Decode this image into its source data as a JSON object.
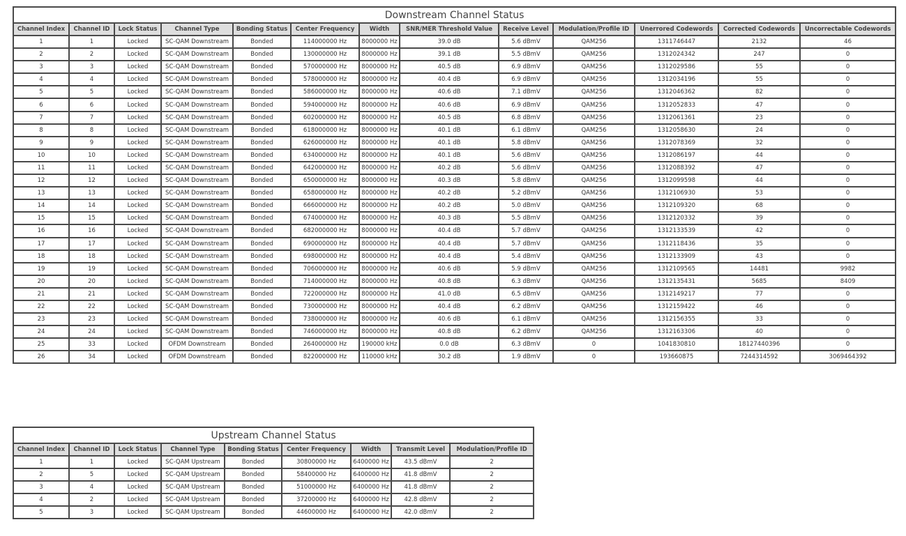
{
  "downstream": {
    "title": "Downstream Channel Status",
    "headers": [
      "Channel Index",
      "Channel ID",
      "Lock Status",
      "Channel Type",
      "Bonding Status",
      "Center Frequency",
      "Width",
      "SNR/MER Threshold Value",
      "Receive Level",
      "Modulation/Profile ID",
      "Unerrored Codewords",
      "Corrected Codewords",
      "Uncorrectable Codewords"
    ],
    "rows": [
      [
        "1",
        "1",
        "Locked",
        "SC-QAM Downstream",
        "Bonded",
        "114000000 Hz",
        "8000000 Hz",
        "39.0 dB",
        "5.6 dBmV",
        "QAM256",
        "1311746447",
        "2132",
        "46"
      ],
      [
        "2",
        "2",
        "Locked",
        "SC-QAM Downstream",
        "Bonded",
        "130000000 Hz",
        "8000000 Hz",
        "39.1 dB",
        "5.5 dBmV",
        "QAM256",
        "1312024342",
        "247",
        "0"
      ],
      [
        "3",
        "3",
        "Locked",
        "SC-QAM Downstream",
        "Bonded",
        "570000000 Hz",
        "8000000 Hz",
        "40.5 dB",
        "6.9 dBmV",
        "QAM256",
        "1312029586",
        "55",
        "0"
      ],
      [
        "4",
        "4",
        "Locked",
        "SC-QAM Downstream",
        "Bonded",
        "578000000 Hz",
        "8000000 Hz",
        "40.4 dB",
        "6.9 dBmV",
        "QAM256",
        "1312034196",
        "55",
        "0"
      ],
      [
        "5",
        "5",
        "Locked",
        "SC-QAM Downstream",
        "Bonded",
        "586000000 Hz",
        "8000000 Hz",
        "40.6 dB",
        "7.1 dBmV",
        "QAM256",
        "1312046362",
        "82",
        "0"
      ],
      [
        "6",
        "6",
        "Locked",
        "SC-QAM Downstream",
        "Bonded",
        "594000000 Hz",
        "8000000 Hz",
        "40.6 dB",
        "6.9 dBmV",
        "QAM256",
        "1312052833",
        "47",
        "0"
      ],
      [
        "7",
        "7",
        "Locked",
        "SC-QAM Downstream",
        "Bonded",
        "602000000 Hz",
        "8000000 Hz",
        "40.5 dB",
        "6.8 dBmV",
        "QAM256",
        "1312061361",
        "23",
        "0"
      ],
      [
        "8",
        "8",
        "Locked",
        "SC-QAM Downstream",
        "Bonded",
        "618000000 Hz",
        "8000000 Hz",
        "40.1 dB",
        "6.1 dBmV",
        "QAM256",
        "1312058630",
        "24",
        "0"
      ],
      [
        "9",
        "9",
        "Locked",
        "SC-QAM Downstream",
        "Bonded",
        "626000000 Hz",
        "8000000 Hz",
        "40.1 dB",
        "5.8 dBmV",
        "QAM256",
        "1312078369",
        "32",
        "0"
      ],
      [
        "10",
        "10",
        "Locked",
        "SC-QAM Downstream",
        "Bonded",
        "634000000 Hz",
        "8000000 Hz",
        "40.1 dB",
        "5.6 dBmV",
        "QAM256",
        "1312086197",
        "44",
        "0"
      ],
      [
        "11",
        "11",
        "Locked",
        "SC-QAM Downstream",
        "Bonded",
        "642000000 Hz",
        "8000000 Hz",
        "40.2 dB",
        "5.6 dBmV",
        "QAM256",
        "1312088392",
        "47",
        "0"
      ],
      [
        "12",
        "12",
        "Locked",
        "SC-QAM Downstream",
        "Bonded",
        "650000000 Hz",
        "8000000 Hz",
        "40.3 dB",
        "5.8 dBmV",
        "QAM256",
        "1312099598",
        "44",
        "0"
      ],
      [
        "13",
        "13",
        "Locked",
        "SC-QAM Downstream",
        "Bonded",
        "658000000 Hz",
        "8000000 Hz",
        "40.2 dB",
        "5.2 dBmV",
        "QAM256",
        "1312106930",
        "53",
        "0"
      ],
      [
        "14",
        "14",
        "Locked",
        "SC-QAM Downstream",
        "Bonded",
        "666000000 Hz",
        "8000000 Hz",
        "40.2 dB",
        "5.0 dBmV",
        "QAM256",
        "1312109320",
        "68",
        "0"
      ],
      [
        "15",
        "15",
        "Locked",
        "SC-QAM Downstream",
        "Bonded",
        "674000000 Hz",
        "8000000 Hz",
        "40.3 dB",
        "5.5 dBmV",
        "QAM256",
        "1312120332",
        "39",
        "0"
      ],
      [
        "16",
        "16",
        "Locked",
        "SC-QAM Downstream",
        "Bonded",
        "682000000 Hz",
        "8000000 Hz",
        "40.4 dB",
        "5.7 dBmV",
        "QAM256",
        "1312133539",
        "42",
        "0"
      ],
      [
        "17",
        "17",
        "Locked",
        "SC-QAM Downstream",
        "Bonded",
        "690000000 Hz",
        "8000000 Hz",
        "40.4 dB",
        "5.7 dBmV",
        "QAM256",
        "1312118436",
        "35",
        "0"
      ],
      [
        "18",
        "18",
        "Locked",
        "SC-QAM Downstream",
        "Bonded",
        "698000000 Hz",
        "8000000 Hz",
        "40.4 dB",
        "5.4 dBmV",
        "QAM256",
        "1312133909",
        "43",
        "0"
      ],
      [
        "19",
        "19",
        "Locked",
        "SC-QAM Downstream",
        "Bonded",
        "706000000 Hz",
        "8000000 Hz",
        "40.6 dB",
        "5.9 dBmV",
        "QAM256",
        "1312109565",
        "14481",
        "9982"
      ],
      [
        "20",
        "20",
        "Locked",
        "SC-QAM Downstream",
        "Bonded",
        "714000000 Hz",
        "8000000 Hz",
        "40.8 dB",
        "6.3 dBmV",
        "QAM256",
        "1312135431",
        "5685",
        "8409"
      ],
      [
        "21",
        "21",
        "Locked",
        "SC-QAM Downstream",
        "Bonded",
        "722000000 Hz",
        "8000000 Hz",
        "41.0 dB",
        "6.5 dBmV",
        "QAM256",
        "1312149217",
        "77",
        "0"
      ],
      [
        "22",
        "22",
        "Locked",
        "SC-QAM Downstream",
        "Bonded",
        "730000000 Hz",
        "8000000 Hz",
        "40.4 dB",
        "6.2 dBmV",
        "QAM256",
        "1312159422",
        "46",
        "0"
      ],
      [
        "23",
        "23",
        "Locked",
        "SC-QAM Downstream",
        "Bonded",
        "738000000 Hz",
        "8000000 Hz",
        "40.6 dB",
        "6.1 dBmV",
        "QAM256",
        "1312156355",
        "33",
        "0"
      ],
      [
        "24",
        "24",
        "Locked",
        "SC-QAM Downstream",
        "Bonded",
        "746000000 Hz",
        "8000000 Hz",
        "40.8 dB",
        "6.2 dBmV",
        "QAM256",
        "1312163306",
        "40",
        "0"
      ],
      [
        "25",
        "33",
        "Locked",
        "OFDM Downstream",
        "Bonded",
        "264000000 Hz",
        "190000 kHz",
        "0.0 dB",
        "6.3 dBmV",
        "0",
        "1041830810",
        "18127440396",
        "0"
      ],
      [
        "26",
        "34",
        "Locked",
        "OFDM Downstream",
        "Bonded",
        "822000000 Hz",
        "110000 kHz",
        "30.2 dB",
        "1.9 dBmV",
        "0",
        "193660875",
        "7244314592",
        "3069464392"
      ]
    ]
  },
  "upstream": {
    "title": "Upstream Channel Status",
    "headers": [
      "Channel Index",
      "Channel ID",
      "Lock Status",
      "Channel Type",
      "Bonding Status",
      "Center Frequency",
      "Width",
      "Transmit Level",
      "Modulation/Profile ID"
    ],
    "rows": [
      [
        "1",
        "1",
        "Locked",
        "SC-QAM Upstream",
        "Bonded",
        "30800000 Hz",
        "6400000 Hz",
        "43.5 dBmV",
        "2"
      ],
      [
        "2",
        "5",
        "Locked",
        "SC-QAM Upstream",
        "Bonded",
        "58400000 Hz",
        "6400000 Hz",
        "41.8 dBmV",
        "2"
      ],
      [
        "3",
        "4",
        "Locked",
        "SC-QAM Upstream",
        "Bonded",
        "51000000 Hz",
        "6400000 Hz",
        "41.8 dBmV",
        "2"
      ],
      [
        "4",
        "2",
        "Locked",
        "SC-QAM Upstream",
        "Bonded",
        "37200000 Hz",
        "6400000 Hz",
        "42.8 dBmV",
        "2"
      ],
      [
        "5",
        "3",
        "Locked",
        "SC-QAM Upstream",
        "Bonded",
        "44600000 Hz",
        "6400000 Hz",
        "42.0 dBmV",
        "2"
      ]
    ]
  }
}
